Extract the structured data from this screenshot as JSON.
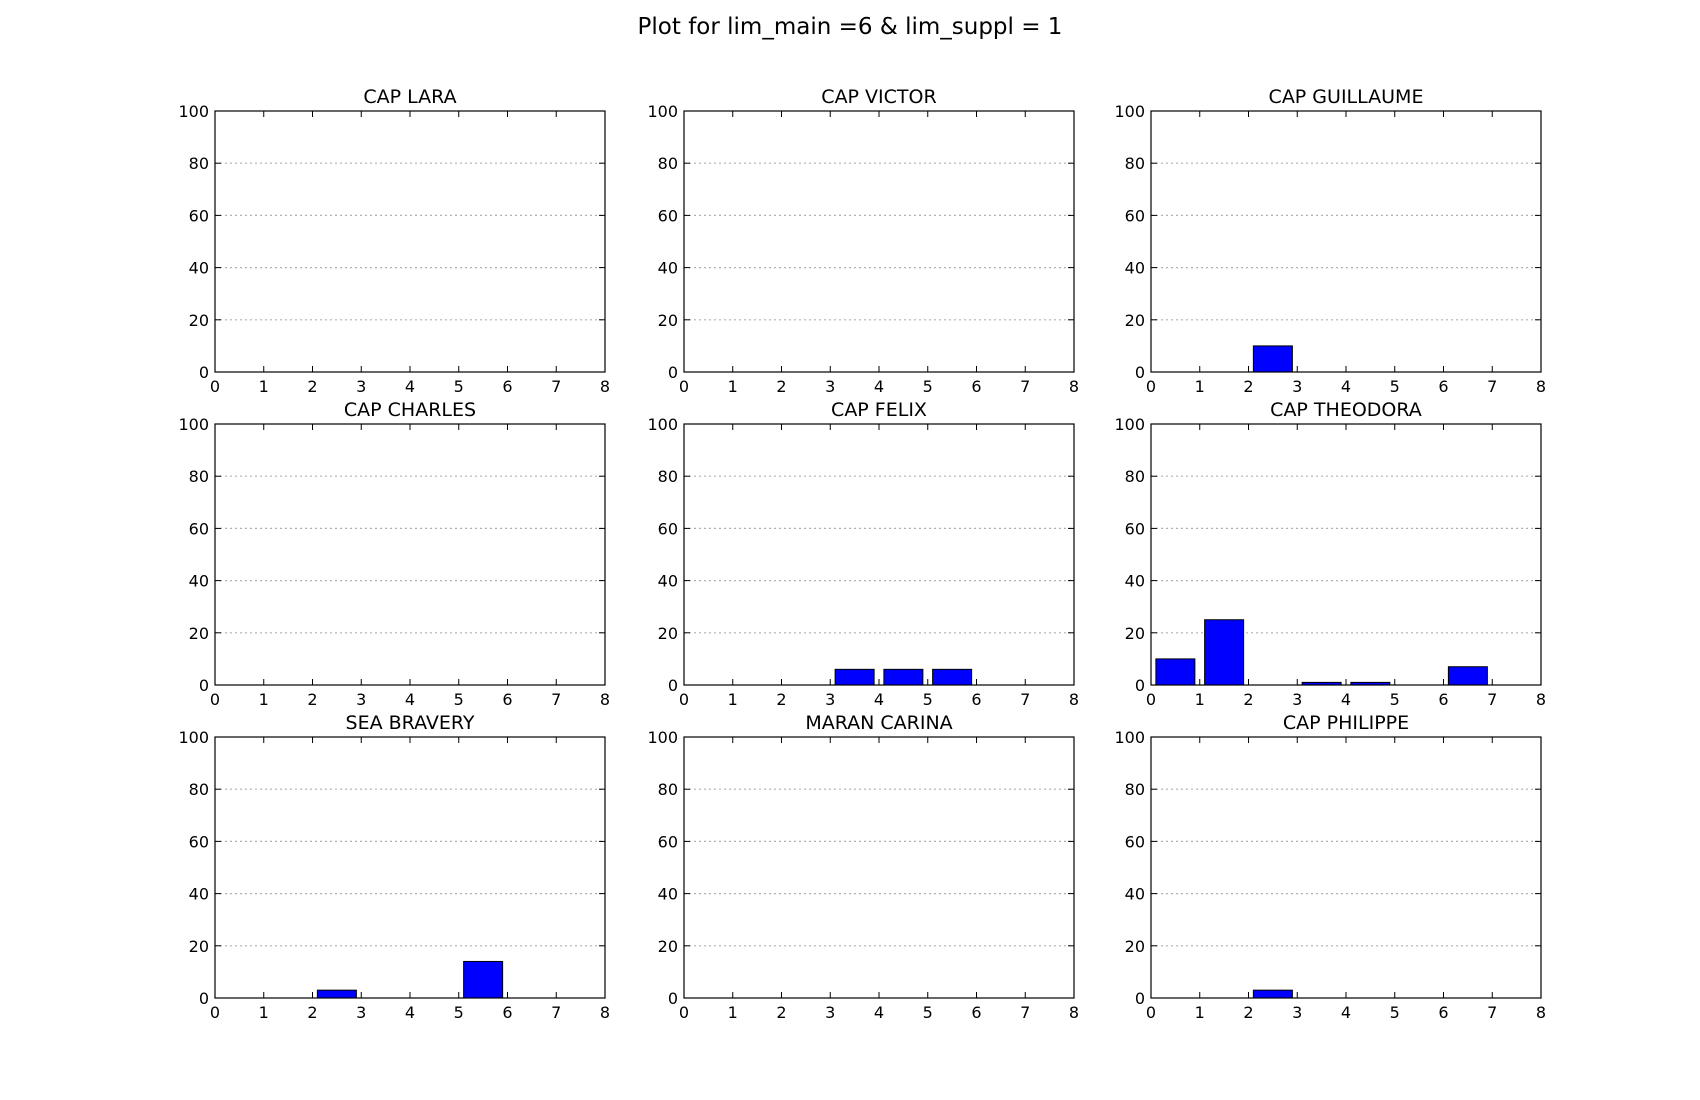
{
  "figure_title": "Plot for lim_main =6 & lim_suppl = 1",
  "colors": {
    "bar": "#0000ff",
    "grid": "#b0b0b0",
    "axis": "#000000"
  },
  "chart_data": [
    {
      "type": "bar",
      "title": "CAP LARA",
      "categories": [
        0,
        1,
        2,
        3,
        4,
        5,
        6,
        7
      ],
      "values": [
        0,
        0,
        0,
        0,
        0,
        0,
        0,
        0
      ],
      "xlim": [
        0,
        8
      ],
      "ylim": [
        0,
        100
      ],
      "xticks": [
        "0",
        "1",
        "2",
        "3",
        "4",
        "5",
        "6",
        "7",
        "8"
      ],
      "yticks": [
        "0",
        "20",
        "40",
        "60",
        "80",
        "100"
      ],
      "grid": "y-dotted"
    },
    {
      "type": "bar",
      "title": "CAP VICTOR",
      "categories": [
        0,
        1,
        2,
        3,
        4,
        5,
        6,
        7
      ],
      "values": [
        0,
        0,
        0,
        0,
        0,
        0,
        0,
        0
      ],
      "xlim": [
        0,
        8
      ],
      "ylim": [
        0,
        100
      ],
      "xticks": [
        "0",
        "1",
        "2",
        "3",
        "4",
        "5",
        "6",
        "7",
        "8"
      ],
      "yticks": [
        "0",
        "20",
        "40",
        "60",
        "80",
        "100"
      ],
      "grid": "y-dotted"
    },
    {
      "type": "bar",
      "title": "CAP GUILLAUME",
      "categories": [
        0,
        1,
        2,
        3,
        4,
        5,
        6,
        7
      ],
      "values": [
        0,
        0,
        10,
        0,
        0,
        0,
        0,
        0
      ],
      "xlim": [
        0,
        8
      ],
      "ylim": [
        0,
        100
      ],
      "xticks": [
        "0",
        "1",
        "2",
        "3",
        "4",
        "5",
        "6",
        "7",
        "8"
      ],
      "yticks": [
        "0",
        "20",
        "40",
        "60",
        "80",
        "100"
      ],
      "grid": "y-dotted"
    },
    {
      "type": "bar",
      "title": "CAP CHARLES",
      "categories": [
        0,
        1,
        2,
        3,
        4,
        5,
        6,
        7
      ],
      "values": [
        0,
        0,
        0,
        0,
        0,
        0,
        0,
        0
      ],
      "xlim": [
        0,
        8
      ],
      "ylim": [
        0,
        100
      ],
      "xticks": [
        "0",
        "1",
        "2",
        "3",
        "4",
        "5",
        "6",
        "7",
        "8"
      ],
      "yticks": [
        "0",
        "20",
        "40",
        "60",
        "80",
        "100"
      ],
      "grid": "y-dotted"
    },
    {
      "type": "bar",
      "title": "CAP FELIX",
      "categories": [
        0,
        1,
        2,
        3,
        4,
        5,
        6,
        7
      ],
      "values": [
        0,
        0,
        0,
        6,
        6,
        6,
        0,
        0
      ],
      "xlim": [
        0,
        8
      ],
      "ylim": [
        0,
        100
      ],
      "xticks": [
        "0",
        "1",
        "2",
        "3",
        "4",
        "5",
        "6",
        "7",
        "8"
      ],
      "yticks": [
        "0",
        "20",
        "40",
        "60",
        "80",
        "100"
      ],
      "grid": "y-dotted"
    },
    {
      "type": "bar",
      "title": "CAP THEODORA",
      "categories": [
        0,
        1,
        2,
        3,
        4,
        5,
        6,
        7
      ],
      "values": [
        10,
        25,
        0,
        1,
        1,
        0,
        7,
        0
      ],
      "xlim": [
        0,
        8
      ],
      "ylim": [
        0,
        100
      ],
      "xticks": [
        "0",
        "1",
        "2",
        "3",
        "4",
        "5",
        "6",
        "7",
        "8"
      ],
      "yticks": [
        "0",
        "20",
        "40",
        "60",
        "80",
        "100"
      ],
      "grid": "y-dotted"
    },
    {
      "type": "bar",
      "title": "SEA BRAVERY",
      "categories": [
        0,
        1,
        2,
        3,
        4,
        5,
        6,
        7
      ],
      "values": [
        0,
        0,
        3,
        0,
        0,
        14,
        0,
        0
      ],
      "xlim": [
        0,
        8
      ],
      "ylim": [
        0,
        100
      ],
      "xticks": [
        "0",
        "1",
        "2",
        "3",
        "4",
        "5",
        "6",
        "7",
        "8"
      ],
      "yticks": [
        "0",
        "20",
        "40",
        "60",
        "80",
        "100"
      ],
      "grid": "y-dotted"
    },
    {
      "type": "bar",
      "title": "MARAN CARINA",
      "categories": [
        0,
        1,
        2,
        3,
        4,
        5,
        6,
        7
      ],
      "values": [
        0,
        0,
        0,
        0,
        0,
        0,
        0,
        0
      ],
      "xlim": [
        0,
        8
      ],
      "ylim": [
        0,
        100
      ],
      "xticks": [
        "0",
        "1",
        "2",
        "3",
        "4",
        "5",
        "6",
        "7",
        "8"
      ],
      "yticks": [
        "0",
        "20",
        "40",
        "60",
        "80",
        "100"
      ],
      "grid": "y-dotted"
    },
    {
      "type": "bar",
      "title": "CAP PHILIPPE",
      "categories": [
        0,
        1,
        2,
        3,
        4,
        5,
        6,
        7
      ],
      "values": [
        0,
        0,
        3,
        0,
        0,
        0,
        0,
        0
      ],
      "xlim": [
        0,
        8
      ],
      "ylim": [
        0,
        100
      ],
      "xticks": [
        "0",
        "1",
        "2",
        "3",
        "4",
        "5",
        "6",
        "7",
        "8"
      ],
      "yticks": [
        "0",
        "20",
        "40",
        "60",
        "80",
        "100"
      ],
      "grid": "y-dotted"
    }
  ]
}
